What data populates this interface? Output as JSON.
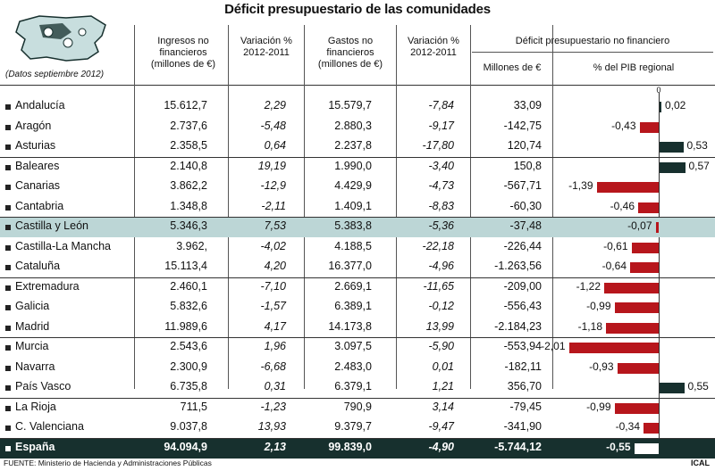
{
  "title": "Déficit presupuestario de las comunidades",
  "note": "(Datos septiembre 2012)",
  "headers": {
    "ingresos": "Ingresos no financieros (millones de €)",
    "var1": "Variación % 2012-2011",
    "gastos": "Gastos no financieros (millones de €)",
    "var2": "Variación % 2012-2011",
    "deficit_group": "Déficit presupuestario no financiero",
    "millones": "Millones de €",
    "pib": "% del PIB regional"
  },
  "zero_label": "0",
  "source": "FUENTE: Ministerio de Hacienda y Administraciones Públicas",
  "credit": "ICAL",
  "chart_data": {
    "type": "table",
    "columns": [
      "Comunidad",
      "Ingresos no financieros (millones de €)",
      "Variación % 2012-2011",
      "Gastos no financieros (millones de €)",
      "Variación % 2012-2011",
      "Millones de €",
      "% del PIB regional"
    ],
    "rows": [
      [
        "Andalucía",
        "15.612,7",
        "2,29",
        "15.579,7",
        "-7,84",
        "33,09",
        "0,02"
      ],
      [
        "Aragón",
        "2.737,6",
        "-5,48",
        "2.880,3",
        "-9,17",
        "-142,75",
        "-0,43"
      ],
      [
        "Asturias",
        "2.358,5",
        "0,64",
        "2.237,8",
        "-17,80",
        "120,74",
        "0,53"
      ],
      [
        "Baleares",
        "2.140,8",
        "19,19",
        "1.990,0",
        "-3,40",
        "150,8",
        "0,57"
      ],
      [
        "Canarias",
        "3.862,2",
        "-12,9",
        "4.429,9",
        "-4,73",
        "-567,71",
        "-1,39"
      ],
      [
        "Cantabria",
        "1.348,8",
        "-2,11",
        "1.409,1",
        "-8,83",
        "-60,30",
        "-0,46"
      ],
      [
        "Castilla y León",
        "5.346,3",
        "7,53",
        "5.383,8",
        "-5,36",
        "-37,48",
        "-0,07"
      ],
      [
        "Castilla-La Mancha",
        "3.962,",
        "-4,02",
        "4.188,5",
        "-22,18",
        "-226,44",
        "-0,61"
      ],
      [
        "Cataluña",
        "15.113,4",
        "4,20",
        "16.377,0",
        "-4,96",
        "-1.263,56",
        "-0,64"
      ],
      [
        "Extremadura",
        "2.460,1",
        "-7,10",
        "2.669,1",
        "-11,65",
        "-209,00",
        "-1,22"
      ],
      [
        "Galicia",
        "5.832,6",
        "-1,57",
        "6.389,1",
        "-0,12",
        "-556,43",
        "-0,99"
      ],
      [
        "Madrid",
        "11.989,6",
        "4,17",
        "14.173,8",
        "13,99",
        "-2.184,23",
        "-1,18"
      ],
      [
        "Murcia",
        "2.543,6",
        "1,96",
        "3.097,5",
        "-5,90",
        "-553,94",
        "-2,01"
      ],
      [
        "Navarra",
        "2.300,9",
        "-6,68",
        "2.483,0",
        "0,01",
        "-182,11",
        "-0,93"
      ],
      [
        "País Vasco",
        "6.735,8",
        "0,31",
        "6.379,1",
        "1,21",
        "356,70",
        "0,55"
      ],
      [
        "La Rioja",
        "711,5",
        "-1,23",
        "790,9",
        "3,14",
        "-79,45",
        "-0,99"
      ],
      [
        "C. Valenciana",
        "9.037,8",
        "13,93",
        "9.379,7",
        "-9,47",
        "-341,90",
        "-0,34"
      ],
      [
        "España",
        "94.094,9",
        "2,13",
        "99.839,0",
        "-4,90",
        "-5.744,12",
        "-0,55"
      ]
    ],
    "bar_series": {
      "name": "% del PIB regional",
      "values": [
        0.02,
        -0.43,
        0.53,
        0.57,
        -1.39,
        -0.46,
        -0.07,
        -0.61,
        -0.64,
        -1.22,
        -0.99,
        -1.18,
        -2.01,
        -0.93,
        0.55,
        -0.99,
        -0.34,
        -0.55
      ]
    },
    "highlight_row": "Castilla y León",
    "total_row": "España",
    "colors": {
      "negative": "#b7161c",
      "positive": "#17302e",
      "highlight": "#bcd6d6",
      "total": "#17302e"
    }
  }
}
